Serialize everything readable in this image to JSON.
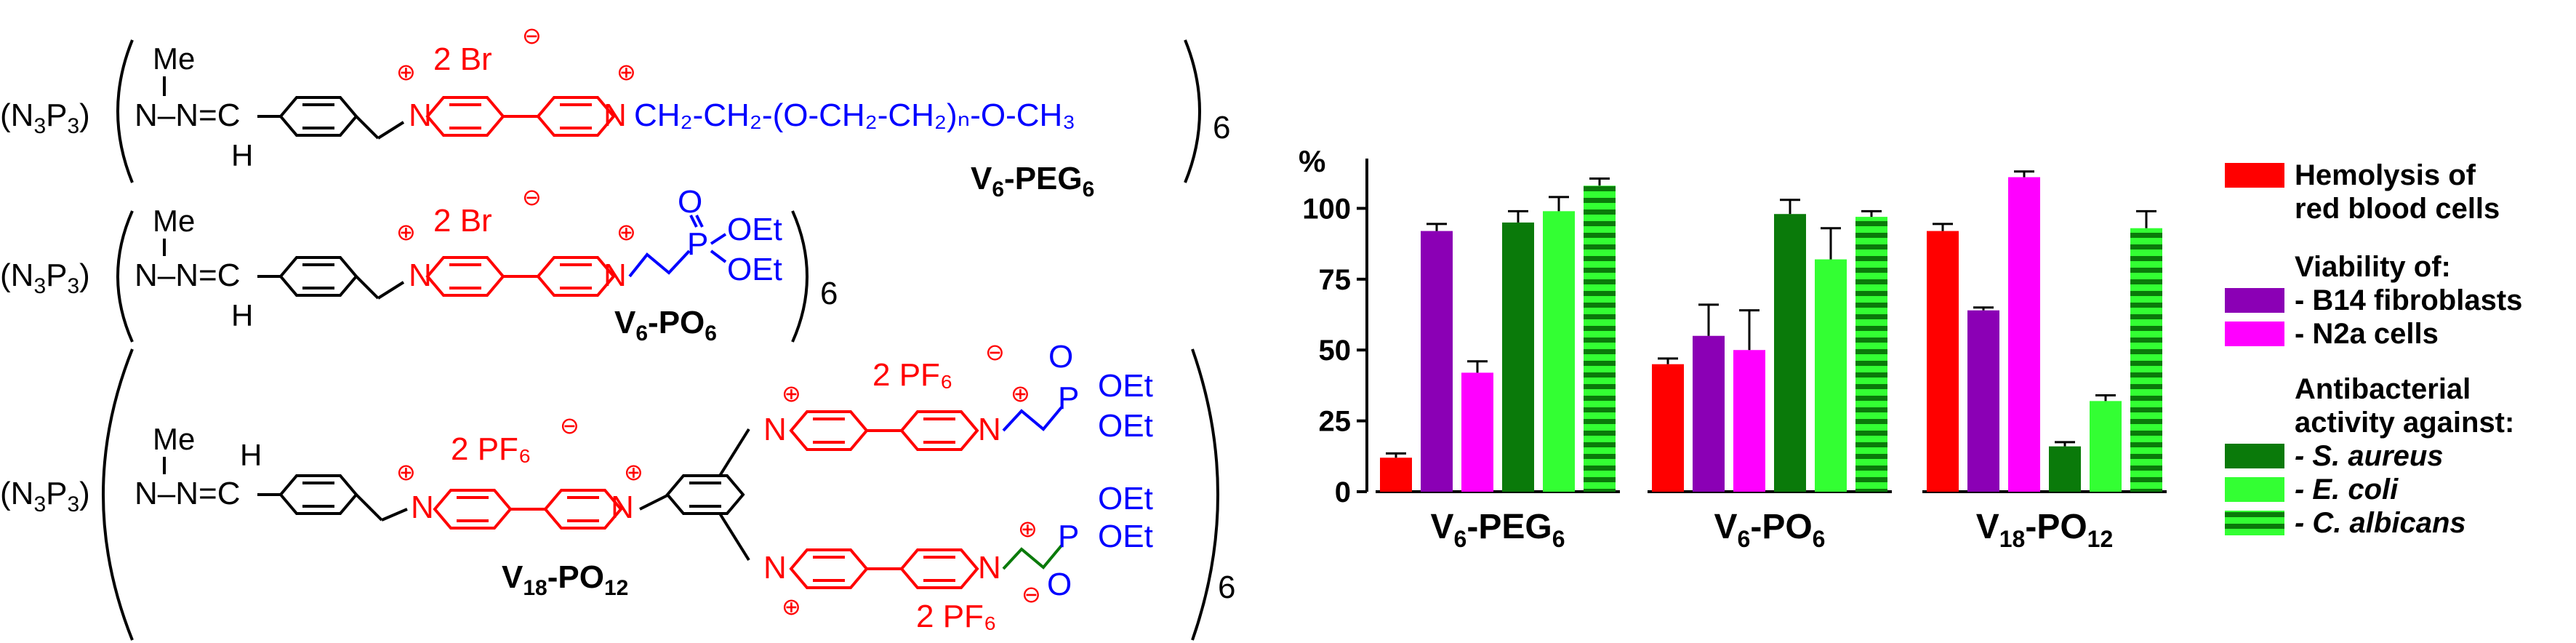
{
  "structures": {
    "core": "(N₃P₃)",
    "core_parts": [
      "(N",
      "3",
      "P",
      "3",
      ")"
    ],
    "repeat_6": "6",
    "methyl": "Me",
    "hydrogen": "H",
    "hydrazone": "N–N=C",
    "plus": "+",
    "minus": "−",
    "n_atom": "N",
    "p_atom": "P",
    "o_atom": "O",
    "oet": "OEt",
    "peg_chain": "CH₂-CH₂-(O-CH₂-CH₂)ₙ-O-CH₃",
    "counterion_br": "2 Br",
    "counterion_pf6": "2 PF₆",
    "labels": {
      "peg": [
        "V",
        "6",
        "-PEG",
        "6"
      ],
      "po": [
        "V",
        "6",
        "-PO",
        "6"
      ],
      "po12": [
        "V",
        "18",
        "-PO",
        "12"
      ]
    }
  },
  "colors": {
    "red": "#FF0000",
    "purple": "#8B00B5",
    "magenta": "#FF00FF",
    "dark_green": "#0A7A0A",
    "light_green": "#33FF33",
    "stripe_green": "#0A7A0A",
    "blue": "#0000FF",
    "black": "#000000"
  },
  "chart_data": {
    "type": "bar",
    "ylabel": "%",
    "ylim": [
      0,
      115
    ],
    "yticks": [
      0,
      25,
      50,
      75,
      100
    ],
    "categories": [
      "V₆-PEG₆",
      "V₆-PO₆",
      "V₁₈-PO₁₂"
    ],
    "category_parts": [
      [
        "V",
        "6",
        "-PEG",
        "6"
      ],
      [
        "V",
        "6",
        "-PO",
        "6"
      ],
      [
        "V",
        "18",
        "-PO",
        "12"
      ]
    ],
    "legend_position": "right",
    "legend_groups": [
      {
        "heading": [
          "Hemolysis of",
          "red blood cells"
        ],
        "series_index": [
          0
        ],
        "heading_has_swatch": true
      },
      {
        "heading": [
          "Viability of:"
        ],
        "series_index": [
          1,
          2
        ],
        "heading_has_swatch": false
      },
      {
        "heading": [
          "Antibacterial",
          "activity against:"
        ],
        "series_index": [
          3,
          4,
          5
        ],
        "heading_has_swatch": false
      }
    ],
    "series": [
      {
        "name": "Hemolysis of red blood cells",
        "legend_label": "",
        "color": "#FF0000",
        "pattern": "solid",
        "values": [
          12,
          45,
          92
        ],
        "errors": [
          1.5,
          2,
          2.5
        ]
      },
      {
        "name": "B14 fibroblasts",
        "legend_label": "- B14 fibroblasts",
        "color": "#8B00B5",
        "pattern": "solid",
        "values": [
          92,
          55,
          64
        ],
        "errors": [
          2.5,
          11,
          1
        ]
      },
      {
        "name": "N2a cells",
        "legend_label": "- N2a cells",
        "color": "#FF00FF",
        "pattern": "solid",
        "values": [
          42,
          50,
          111
        ],
        "errors": [
          4,
          14,
          2
        ]
      },
      {
        "name": "S. aureus",
        "legend_label": "- S. aureus",
        "color": "#0A7A0A",
        "pattern": "solid",
        "values": [
          95,
          98,
          16
        ],
        "errors": [
          4,
          5,
          1.5
        ]
      },
      {
        "name": "E. coli",
        "legend_label": "- E. coli",
        "color": "#33FF33",
        "pattern": "solid",
        "values": [
          99,
          82,
          32
        ],
        "errors": [
          5,
          11,
          2
        ]
      },
      {
        "name": "C. albicans",
        "legend_label": "- C. albicans",
        "color": "#33FF33",
        "pattern": "striped",
        "values": [
          108,
          97,
          93
        ],
        "errors": [
          2.5,
          2,
          6
        ]
      }
    ]
  }
}
